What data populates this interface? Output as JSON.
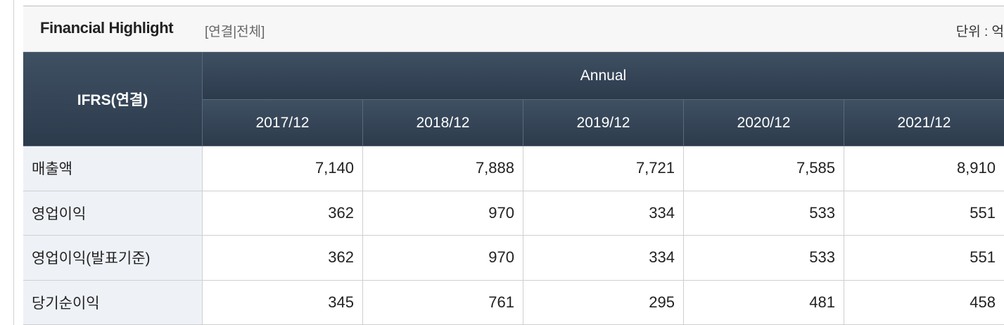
{
  "header": {
    "title": "Financial Highlight",
    "subtitle": "[연결|전체]",
    "unit": "단위 : 억"
  },
  "table": {
    "corner": "IFRS(연결)",
    "group": "Annual",
    "columns": [
      "2017/12",
      "2018/12",
      "2019/12",
      "2020/12",
      "2021/12"
    ],
    "rows": [
      {
        "label": "매출액",
        "values": [
          "7,140",
          "7,888",
          "7,721",
          "7,585",
          "8,910"
        ]
      },
      {
        "label": "영업이익",
        "values": [
          "362",
          "970",
          "334",
          "533",
          "551"
        ]
      },
      {
        "label": "영업이익(발표기준)",
        "values": [
          "362",
          "970",
          "334",
          "533",
          "551"
        ]
      },
      {
        "label": "당기순이익",
        "values": [
          "345",
          "761",
          "295",
          "481",
          "458"
        ]
      }
    ]
  }
}
